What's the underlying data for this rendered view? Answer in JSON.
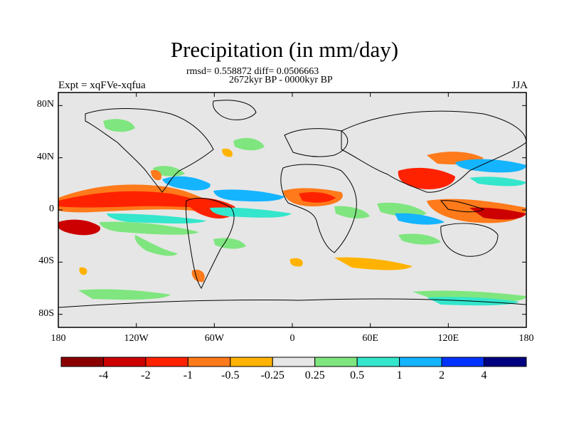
{
  "title": "Precipitation (in mm/day)",
  "stats": "rmsd= 0.558872 diff= 0.0506663",
  "period": "2672kyr BP - 0000kyr BP",
  "experiment": "Expt = xqFVe-xqfua",
  "season": "JJA",
  "y_axis": {
    "ticks": [
      "80N",
      "40N",
      "0",
      "40S",
      "80S"
    ],
    "lat_values": [
      80,
      40,
      0,
      -40,
      -80
    ]
  },
  "x_axis": {
    "ticks": [
      "180",
      "120W",
      "60W",
      "0",
      "60E",
      "120E",
      "180"
    ],
    "lon_values": [
      -180,
      -120,
      -60,
      0,
      60,
      120,
      180
    ]
  },
  "colorbar": {
    "labels": [
      "-4",
      "-2",
      "-1",
      "-0.5",
      "-0.25",
      "0.25",
      "0.5",
      "1",
      "2",
      "4"
    ],
    "colors": [
      "#8b0000",
      "#cc0000",
      "#ff2200",
      "#ff7a1a",
      "#ffb300",
      "#e6e6e6",
      "#7fe67f",
      "#33e6cc",
      "#14b4ff",
      "#0033ff",
      "#000080"
    ]
  },
  "land_color": "#e6e6e6"
}
